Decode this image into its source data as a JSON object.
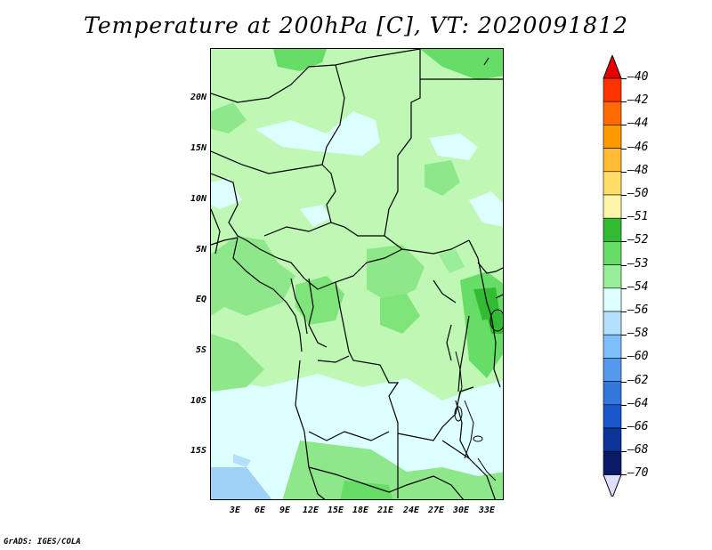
{
  "title": "Temperature at 200hPa [C], VT: 2020091812",
  "y_axis": {
    "labels": [
      "20N",
      "15N",
      "10N",
      "5N",
      "EQ",
      "5S",
      "10S",
      "15S"
    ]
  },
  "x_axis": {
    "labels": [
      "3E",
      "6E",
      "9E",
      "12E",
      "15E",
      "18E",
      "21E",
      "24E",
      "27E",
      "30E",
      "33E"
    ]
  },
  "colorbar": {
    "labels": [
      "-40",
      "-42",
      "-44",
      "-46",
      "-48",
      "-50",
      "-51",
      "-52",
      "-53",
      "-54",
      "-56",
      "-58",
      "-60",
      "-62",
      "-64",
      "-66",
      "-68",
      "-70"
    ],
    "colors": [
      "#e60000",
      "#ff3300",
      "#ff6a00",
      "#ff9900",
      "#ffbb33",
      "#ffdd66",
      "#fff5aa",
      "#33bb33",
      "#66dd66",
      "#99ee99",
      "#ddffff",
      "#b3e0ff",
      "#80bfff",
      "#5599ee",
      "#3377dd",
      "#1a55cc",
      "#0d3399",
      "#0a1a66",
      "#dde0ff"
    ]
  },
  "footer": "GrADS: IGES/COLA",
  "chart_data": {
    "type": "heatmap",
    "title": "Temperature at 200hPa [C], VT: 2020091812",
    "x_ticks": [
      "3E",
      "6E",
      "9E",
      "12E",
      "15E",
      "18E",
      "21E",
      "24E",
      "27E",
      "30E",
      "33E"
    ],
    "y_ticks": [
      "20N",
      "15N",
      "10N",
      "5N",
      "EQ",
      "5S",
      "10S",
      "15S"
    ],
    "levels": [
      -40,
      -42,
      -44,
      -46,
      -48,
      -50,
      -51,
      -52,
      -53,
      -54,
      -56,
      -58,
      -60,
      -62,
      -64,
      -66,
      -68,
      -70
    ],
    "dominant_values": "-52 to -56"
  }
}
